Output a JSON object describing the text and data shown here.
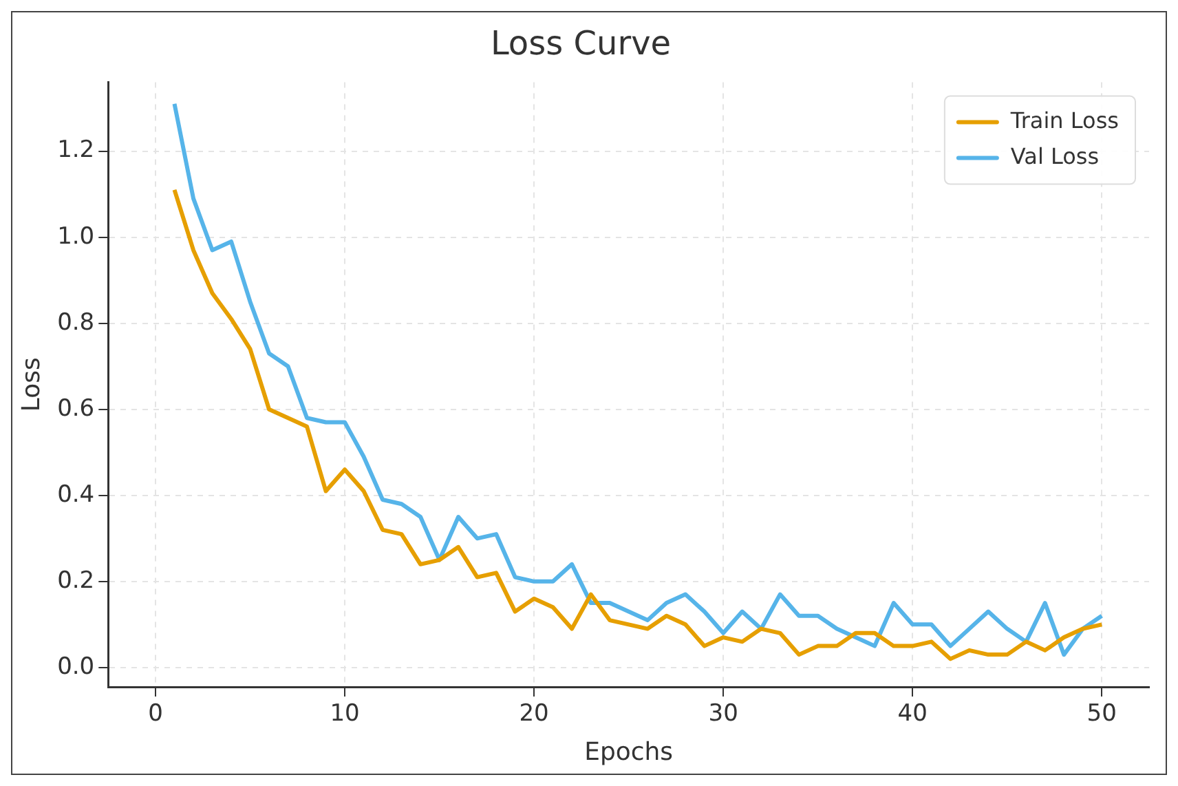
{
  "chart_data": {
    "type": "line",
    "title": "Loss Curve",
    "xlabel": "Epochs",
    "ylabel": "Loss",
    "x": [
      1,
      2,
      3,
      4,
      5,
      6,
      7,
      8,
      9,
      10,
      11,
      12,
      13,
      14,
      15,
      16,
      17,
      18,
      19,
      20,
      21,
      22,
      23,
      24,
      25,
      26,
      27,
      28,
      29,
      30,
      31,
      32,
      33,
      34,
      35,
      36,
      37,
      38,
      39,
      40,
      41,
      42,
      43,
      44,
      45,
      46,
      47,
      48,
      49,
      50
    ],
    "series": [
      {
        "name": "Train Loss",
        "color": "#e69f00",
        "values": [
          1.11,
          0.97,
          0.87,
          0.81,
          0.74,
          0.6,
          0.58,
          0.56,
          0.41,
          0.46,
          0.41,
          0.32,
          0.31,
          0.24,
          0.25,
          0.28,
          0.21,
          0.22,
          0.13,
          0.16,
          0.14,
          0.09,
          0.17,
          0.11,
          0.1,
          0.09,
          0.12,
          0.1,
          0.05,
          0.07,
          0.06,
          0.09,
          0.08,
          0.03,
          0.05,
          0.05,
          0.08,
          0.08,
          0.05,
          0.05,
          0.06,
          0.02,
          0.04,
          0.03,
          0.03,
          0.06,
          0.04,
          0.07,
          0.09,
          0.1
        ]
      },
      {
        "name": "Val Loss",
        "color": "#56b4e9",
        "values": [
          1.31,
          1.09,
          0.97,
          0.99,
          0.85,
          0.73,
          0.7,
          0.58,
          0.57,
          0.57,
          0.49,
          0.39,
          0.38,
          0.35,
          0.25,
          0.35,
          0.3,
          0.31,
          0.21,
          0.2,
          0.2,
          0.24,
          0.15,
          0.15,
          0.13,
          0.11,
          0.15,
          0.17,
          0.13,
          0.08,
          0.13,
          0.09,
          0.17,
          0.12,
          0.12,
          0.09,
          0.07,
          0.05,
          0.15,
          0.1,
          0.1,
          0.05,
          0.09,
          0.13,
          0.09,
          0.06,
          0.15,
          0.03,
          0.09,
          0.12
        ]
      }
    ],
    "xlim": [
      -2.5,
      52.5
    ],
    "xticks": [
      0,
      10,
      20,
      30,
      40,
      50
    ],
    "ylim": [
      -0.045,
      1.36
    ],
    "yticks": [
      {
        "value": 0,
        "label": "0.0"
      },
      0.2,
      0.4,
      0.6,
      0.8,
      {
        "value": 1,
        "label": "1.0"
      },
      1.2
    ],
    "grid": true,
    "legend": "top right",
    "line_style": "solid",
    "marker": "none"
  }
}
